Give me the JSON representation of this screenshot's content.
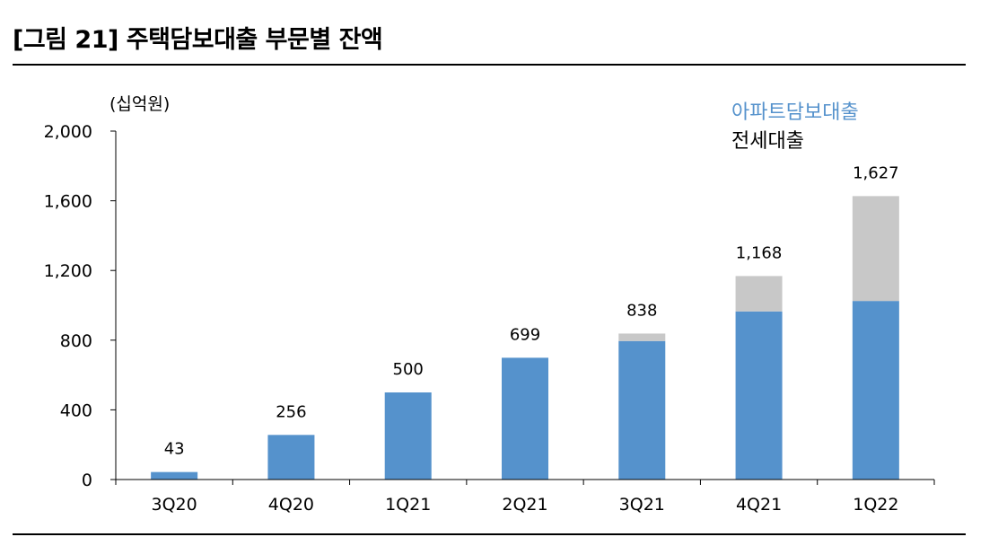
{
  "figure": {
    "title": "[그림 21] 주택담보대출 부문별 잔액"
  },
  "chart_data": {
    "type": "bar",
    "stacked": true,
    "unit_label": "(십억원)",
    "categories": [
      "3Q20",
      "4Q20",
      "1Q21",
      "2Q21",
      "3Q21",
      "4Q21",
      "1Q22"
    ],
    "series": [
      {
        "name": "아파트담보대출",
        "color": "#5592CC",
        "values": [
          43,
          256,
          500,
          699,
          795,
          965,
          1025
        ]
      },
      {
        "name": "전세대출",
        "color": "#C8C8C8",
        "values": [
          0,
          0,
          0,
          0,
          43,
          203,
          602
        ]
      }
    ],
    "totals": [
      43,
      256,
      500,
      699,
      838,
      1168,
      1627
    ],
    "total_labels": [
      "43",
      "256",
      "500",
      "699",
      "838",
      "1,168",
      "1,627"
    ],
    "ylim": [
      0,
      2000
    ],
    "yticks": [
      0,
      400,
      800,
      1200,
      1600,
      2000
    ],
    "ytick_labels": [
      "0",
      "400",
      "800",
      "1,200",
      "1,600",
      "2,000"
    ],
    "grid": false,
    "legend_position": "top-right",
    "legend_colors": [
      "#5592CC",
      "#000000"
    ]
  }
}
